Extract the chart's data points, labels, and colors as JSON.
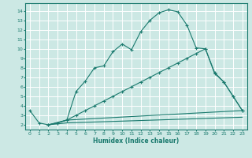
{
  "xlabel": "Humidex (Indice chaleur)",
  "bg_color": "#cce8e4",
  "grid_color": "#ffffff",
  "line_color": "#1a7a6e",
  "xlim": [
    -0.5,
    23.5
  ],
  "ylim": [
    1.5,
    14.8
  ],
  "xticks": [
    0,
    1,
    2,
    3,
    4,
    5,
    6,
    7,
    8,
    9,
    10,
    11,
    12,
    13,
    14,
    15,
    16,
    17,
    18,
    19,
    20,
    21,
    22,
    23
  ],
  "yticks": [
    2,
    3,
    4,
    5,
    6,
    7,
    8,
    9,
    10,
    11,
    12,
    13,
    14
  ],
  "curve1_x": [
    0,
    1,
    2,
    3,
    4,
    5,
    6,
    7,
    8,
    9,
    10,
    11,
    12,
    13,
    14,
    15,
    16,
    17,
    18,
    19,
    20,
    21,
    22,
    23
  ],
  "curve1_y": [
    3.5,
    2.2,
    2.0,
    2.2,
    2.5,
    5.5,
    6.6,
    8.0,
    8.2,
    9.7,
    10.5,
    9.9,
    11.8,
    13.0,
    13.8,
    14.1,
    13.9,
    12.5,
    10.1,
    10.0,
    7.4,
    6.5,
    5.0,
    3.5
  ],
  "curve2_x": [
    2,
    3,
    4,
    5,
    6,
    7,
    8,
    9,
    10,
    11,
    12,
    13,
    14,
    15,
    16,
    17,
    18,
    19,
    20,
    21,
    22,
    23
  ],
  "curve2_y": [
    2.0,
    2.2,
    2.5,
    3.0,
    3.5,
    4.0,
    4.5,
    5.0,
    5.5,
    6.0,
    6.5,
    7.0,
    7.5,
    8.0,
    8.5,
    9.0,
    9.5,
    10.0,
    7.5,
    6.5,
    5.0,
    3.5
  ],
  "curve3_x": [
    2,
    4,
    23
  ],
  "curve3_y": [
    2.0,
    2.5,
    3.5
  ],
  "curve4_x": [
    2,
    4,
    23
  ],
  "curve4_y": [
    2.0,
    2.2,
    2.8
  ]
}
